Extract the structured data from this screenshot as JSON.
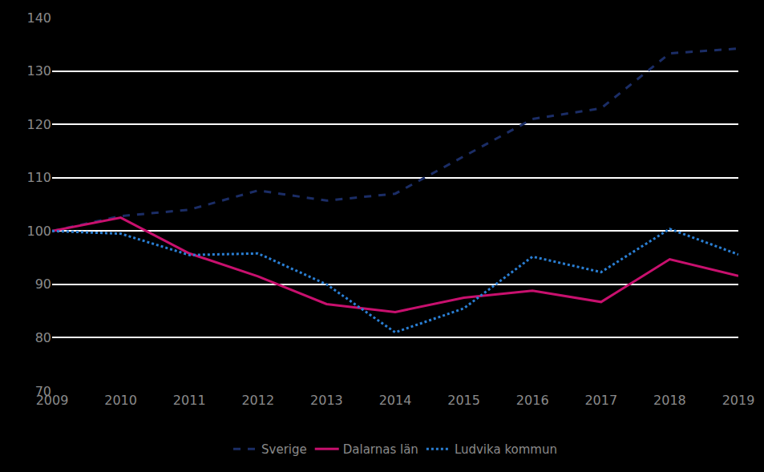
{
  "chart_data": {
    "type": "line",
    "categories": [
      "2009",
      "2010",
      "2011",
      "2012",
      "2013",
      "2014",
      "2015",
      "2016",
      "2017",
      "2018",
      "2019"
    ],
    "series": [
      {
        "name": "Sverige",
        "color": "#1b2d66",
        "line_style": "dash",
        "values": [
          100,
          102.8,
          104,
          107.6,
          105.7,
          107,
          114,
          121,
          123,
          133.3,
          134.2
        ]
      },
      {
        "name": "Dalarnas län",
        "color": "#c8106e",
        "line_style": "solid",
        "values": [
          100,
          102.5,
          95.8,
          91.5,
          86.3,
          84.8,
          87.5,
          88.8,
          86.7,
          94.7,
          91.6
        ]
      },
      {
        "name": "Ludvika kommun",
        "color": "#2a7fd4",
        "line_style": "dot",
        "values": [
          100,
          99.5,
          95.5,
          95.8,
          90,
          81,
          85.5,
          95.2,
          92.3,
          100.4,
          95.6
        ]
      }
    ],
    "ylim": [
      70,
      140
    ],
    "yticks": [
      70,
      80,
      90,
      100,
      110,
      120,
      130,
      140
    ],
    "grid": true,
    "legend": "bottom"
  }
}
